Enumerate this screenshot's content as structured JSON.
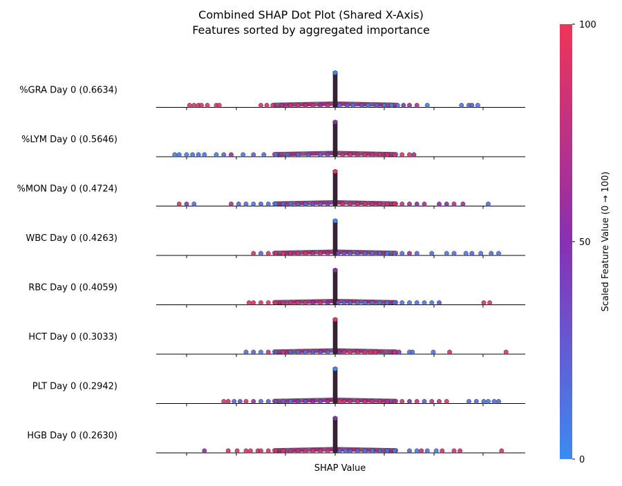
{
  "chart_data": {
    "type": "scatter",
    "title": "Combined SHAP Dot Plot (Shared X-Axis)",
    "subtitle": "Features sorted by aggregated importance",
    "xlabel": "SHAP Value",
    "colorbar": {
      "label": "Scaled Feature Value (0 → 100)",
      "ticks": [
        "0",
        "50",
        "100"
      ],
      "low_color": "#3b8bf0",
      "mid_color": "#8a2fb2",
      "high_color": "#ef3558"
    },
    "features": [
      {
        "label": "%GRA Day 0 (0.6634)",
        "importance": 0.6634,
        "dots": [
          [
            -0.98,
            0.9
          ],
          [
            -0.95,
            0.92
          ],
          [
            -0.92,
            0.9
          ],
          [
            -0.9,
            0.95
          ],
          [
            -0.86,
            0.9
          ],
          [
            -0.8,
            0.92
          ],
          [
            -0.78,
            0.95
          ],
          [
            -0.5,
            0.9
          ],
          [
            -0.46,
            0.85
          ],
          [
            -0.42,
            0.88
          ],
          [
            -0.36,
            0.7
          ],
          [
            -0.3,
            0.85
          ],
          [
            -0.25,
            0.92
          ],
          [
            -0.2,
            0.75
          ],
          [
            -0.15,
            0.85
          ],
          [
            -0.1,
            0.6
          ],
          [
            -0.05,
            0.8
          ],
          [
            0.03,
            0.2
          ],
          [
            0.08,
            0.3
          ],
          [
            0.12,
            0.15
          ],
          [
            0.18,
            0.25
          ],
          [
            0.22,
            0.1
          ],
          [
            0.28,
            0.2
          ],
          [
            0.33,
            0.1
          ],
          [
            0.38,
            0.05
          ],
          [
            0.42,
            0.15
          ],
          [
            0.46,
            0.45
          ],
          [
            0.5,
            0.6
          ],
          [
            0.55,
            0.7
          ],
          [
            0.62,
            0.1
          ],
          [
            0.85,
            0.1
          ],
          [
            0.9,
            0.15
          ],
          [
            0.92,
            0.3
          ],
          [
            0.96,
            0.1
          ]
        ]
      },
      {
        "label": "%LYM Day 0 (0.5646)",
        "importance": 0.5646,
        "dots": [
          [
            -1.08,
            0.05
          ],
          [
            -1.05,
            0.1
          ],
          [
            -1.0,
            0.05
          ],
          [
            -0.96,
            0.1
          ],
          [
            -0.92,
            0.15
          ],
          [
            -0.88,
            0.1
          ],
          [
            -0.8,
            0.05
          ],
          [
            -0.75,
            0.2
          ],
          [
            -0.7,
            0.6
          ],
          [
            -0.62,
            0.1
          ],
          [
            -0.55,
            0.2
          ],
          [
            -0.48,
            0.15
          ],
          [
            -0.4,
            0.1
          ],
          [
            -0.32,
            0.2
          ],
          [
            -0.25,
            0.15
          ],
          [
            -0.18,
            0.25
          ],
          [
            -0.1,
            0.2
          ],
          [
            -0.05,
            0.3
          ],
          [
            0.05,
            0.8
          ],
          [
            0.1,
            0.85
          ],
          [
            0.15,
            0.75
          ],
          [
            0.2,
            0.9
          ],
          [
            0.25,
            0.85
          ],
          [
            0.3,
            0.9
          ],
          [
            0.35,
            0.88
          ],
          [
            0.4,
            0.92
          ],
          [
            0.45,
            0.95
          ],
          [
            0.5,
            0.9
          ],
          [
            0.53,
            0.6
          ]
        ]
      },
      {
        "label": "%MON Day 0 (0.4724)",
        "importance": 0.4724,
        "dots": [
          [
            -1.05,
            0.9
          ],
          [
            -1.0,
            0.4
          ],
          [
            -0.95,
            0.15
          ],
          [
            -0.7,
            0.7
          ],
          [
            -0.65,
            0.2
          ],
          [
            -0.6,
            0.15
          ],
          [
            -0.55,
            0.1
          ],
          [
            -0.5,
            0.2
          ],
          [
            -0.45,
            0.15
          ],
          [
            -0.4,
            0.1
          ],
          [
            -0.35,
            0.2
          ],
          [
            -0.3,
            0.1
          ],
          [
            -0.25,
            0.25
          ],
          [
            -0.2,
            0.2
          ],
          [
            -0.15,
            0.3
          ],
          [
            -0.1,
            0.25
          ],
          [
            -0.05,
            0.4
          ],
          [
            0.05,
            0.85
          ],
          [
            0.1,
            0.8
          ],
          [
            0.15,
            0.85
          ],
          [
            0.2,
            0.9
          ],
          [
            0.25,
            0.8
          ],
          [
            0.3,
            0.85
          ],
          [
            0.35,
            0.88
          ],
          [
            0.4,
            0.9
          ],
          [
            0.45,
            0.75
          ],
          [
            0.5,
            0.6
          ],
          [
            0.55,
            0.5
          ],
          [
            0.6,
            0.65
          ],
          [
            0.7,
            0.55
          ],
          [
            0.75,
            0.5
          ],
          [
            0.8,
            0.7
          ],
          [
            0.86,
            0.6
          ],
          [
            1.03,
            0.15
          ]
        ]
      },
      {
        "label": "WBC Day 0 (0.4263)",
        "importance": 0.4263,
        "dots": [
          [
            -0.55,
            0.85
          ],
          [
            -0.5,
            0.2
          ],
          [
            -0.45,
            0.9
          ],
          [
            -0.4,
            0.85
          ],
          [
            -0.35,
            0.92
          ],
          [
            -0.3,
            0.8
          ],
          [
            -0.25,
            0.85
          ],
          [
            -0.2,
            0.9
          ],
          [
            -0.15,
            0.75
          ],
          [
            -0.1,
            0.85
          ],
          [
            -0.05,
            0.7
          ],
          [
            0.02,
            0.4
          ],
          [
            0.06,
            0.3
          ],
          [
            0.1,
            0.25
          ],
          [
            0.15,
            0.3
          ],
          [
            0.2,
            0.2
          ],
          [
            0.25,
            0.15
          ],
          [
            0.3,
            0.2
          ],
          [
            0.35,
            0.1
          ],
          [
            0.4,
            0.2
          ],
          [
            0.45,
            0.15
          ],
          [
            0.5,
            0.6
          ],
          [
            0.55,
            0.2
          ],
          [
            0.65,
            0.15
          ],
          [
            0.75,
            0.1
          ],
          [
            0.8,
            0.15
          ],
          [
            0.88,
            0.1
          ],
          [
            0.92,
            0.2
          ],
          [
            0.98,
            0.1
          ],
          [
            1.05,
            0.15
          ],
          [
            1.1,
            0.1
          ]
        ]
      },
      {
        "label": "RBC Day 0 (0.4059)",
        "importance": 0.4059,
        "dots": [
          [
            -0.58,
            0.9
          ],
          [
            -0.55,
            0.85
          ],
          [
            -0.5,
            0.9
          ],
          [
            -0.45,
            0.95
          ],
          [
            -0.4,
            0.9
          ],
          [
            -0.35,
            0.85
          ],
          [
            -0.3,
            0.9
          ],
          [
            -0.25,
            0.92
          ],
          [
            -0.2,
            0.85
          ],
          [
            -0.15,
            0.6
          ],
          [
            -0.1,
            0.85
          ],
          [
            -0.05,
            0.5
          ],
          [
            0.02,
            0.3
          ],
          [
            0.06,
            0.2
          ],
          [
            0.1,
            0.25
          ],
          [
            0.15,
            0.15
          ],
          [
            0.2,
            0.1
          ],
          [
            0.25,
            0.15
          ],
          [
            0.3,
            0.1
          ],
          [
            0.35,
            0.12
          ],
          [
            0.4,
            0.2
          ],
          [
            0.45,
            0.15
          ],
          [
            0.5,
            0.1
          ],
          [
            0.55,
            0.15
          ],
          [
            0.6,
            0.1
          ],
          [
            0.65,
            0.1
          ],
          [
            0.7,
            0.3
          ],
          [
            1.0,
            0.85
          ],
          [
            1.04,
            0.9
          ]
        ]
      },
      {
        "label": "HCT Day 0 (0.3033)",
        "importance": 0.3033,
        "dots": [
          [
            -0.6,
            0.15
          ],
          [
            -0.55,
            0.2
          ],
          [
            -0.5,
            0.1
          ],
          [
            -0.45,
            0.85
          ],
          [
            -0.4,
            0.3
          ],
          [
            -0.35,
            0.9
          ],
          [
            -0.3,
            0.2
          ],
          [
            -0.25,
            0.15
          ],
          [
            -0.2,
            0.1
          ],
          [
            -0.15,
            0.25
          ],
          [
            -0.1,
            0.3
          ],
          [
            -0.05,
            0.2
          ],
          [
            0.03,
            0.5
          ],
          [
            0.06,
            0.85
          ],
          [
            0.1,
            0.9
          ],
          [
            0.15,
            0.85
          ],
          [
            0.2,
            0.9
          ],
          [
            0.24,
            0.88
          ],
          [
            0.27,
            0.92
          ],
          [
            0.4,
            0.85
          ],
          [
            0.43,
            0.4
          ],
          [
            0.5,
            0.1
          ],
          [
            0.52,
            0.15
          ],
          [
            0.66,
            0.15
          ],
          [
            0.77,
            0.85
          ],
          [
            1.15,
            0.9
          ]
        ]
      },
      {
        "label": "PLT Day 0 (0.2942)",
        "importance": 0.2942,
        "dots": [
          [
            -0.75,
            0.9
          ],
          [
            -0.72,
            0.85
          ],
          [
            -0.68,
            0.2
          ],
          [
            -0.64,
            0.3
          ],
          [
            -0.6,
            0.9
          ],
          [
            -0.55,
            0.6
          ],
          [
            -0.5,
            0.15
          ],
          [
            -0.45,
            0.2
          ],
          [
            -0.4,
            0.3
          ],
          [
            -0.35,
            0.25
          ],
          [
            -0.3,
            0.1
          ],
          [
            -0.25,
            0.4
          ],
          [
            -0.2,
            0.3
          ],
          [
            -0.15,
            0.5
          ],
          [
            -0.1,
            0.35
          ],
          [
            -0.05,
            0.6
          ],
          [
            0.03,
            0.9
          ],
          [
            0.06,
            0.85
          ],
          [
            0.1,
            0.8
          ],
          [
            0.15,
            0.85
          ],
          [
            0.2,
            0.8
          ],
          [
            0.25,
            0.85
          ],
          [
            0.3,
            0.9
          ],
          [
            0.35,
            0.75
          ],
          [
            0.4,
            0.6
          ],
          [
            0.45,
            0.85
          ],
          [
            0.5,
            0.5
          ],
          [
            0.55,
            0.8
          ],
          [
            0.6,
            0.25
          ],
          [
            0.65,
            0.75
          ],
          [
            0.7,
            0.8
          ],
          [
            0.75,
            0.9
          ],
          [
            0.9,
            0.15
          ],
          [
            0.95,
            0.2
          ],
          [
            1.0,
            0.15
          ],
          [
            1.03,
            0.1
          ],
          [
            1.07,
            0.15
          ],
          [
            1.1,
            0.2
          ]
        ]
      },
      {
        "label": "HGB Day 0 (0.2630)",
        "importance": 0.263,
        "dots": [
          [
            -0.88,
            0.5
          ],
          [
            -0.72,
            0.85
          ],
          [
            -0.66,
            0.9
          ],
          [
            -0.6,
            0.92
          ],
          [
            -0.57,
            0.9
          ],
          [
            -0.52,
            0.85
          ],
          [
            -0.5,
            0.88
          ],
          [
            -0.45,
            0.9
          ],
          [
            -0.4,
            0.85
          ],
          [
            -0.35,
            0.9
          ],
          [
            -0.3,
            0.8
          ],
          [
            -0.25,
            0.85
          ],
          [
            -0.2,
            0.88
          ],
          [
            -0.15,
            0.9
          ],
          [
            -0.1,
            0.85
          ],
          [
            -0.05,
            0.9
          ],
          [
            0.03,
            0.2
          ],
          [
            0.07,
            0.15
          ],
          [
            0.1,
            0.25
          ],
          [
            0.15,
            0.2
          ],
          [
            0.2,
            0.15
          ],
          [
            0.25,
            0.1
          ],
          [
            0.3,
            0.2
          ],
          [
            0.35,
            0.15
          ],
          [
            0.4,
            0.1
          ],
          [
            0.5,
            0.2
          ],
          [
            0.55,
            0.1
          ],
          [
            0.58,
            0.85
          ],
          [
            0.62,
            0.15
          ],
          [
            0.68,
            0.1
          ],
          [
            0.72,
            0.85
          ],
          [
            0.8,
            0.9
          ],
          [
            0.84,
            0.85
          ],
          [
            1.12,
            0.9
          ]
        ]
      }
    ]
  }
}
